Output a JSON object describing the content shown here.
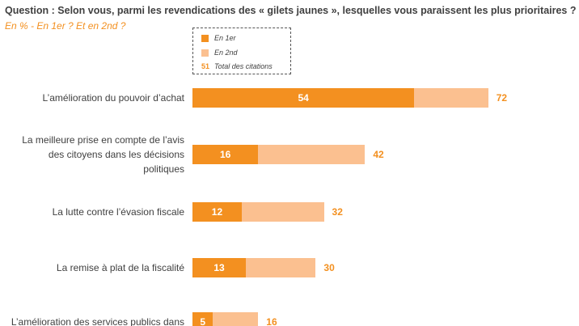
{
  "chart_data": {
    "type": "stacked-bar-horizontal",
    "title": "Question : Selon vous, parmi les revendications des « gilets jaunes », lesquelles vous paraissent les plus prioritaires ?",
    "subtitle": "En % - En 1er ? Et en 2nd ?",
    "categories": [
      "L’amélioration du pouvoir d’achat",
      "La meilleure prise en compte de l’avis des citoyens dans les décisions politiques",
      "La lutte contre l’évasion fiscale",
      "La remise à plat de la fiscalité",
      "L’amélioration des services publics dans"
    ],
    "series": [
      {
        "name": "En 1er",
        "color": "#f39020",
        "values": [
          54,
          16,
          12,
          13,
          5
        ]
      },
      {
        "name": "En 2nd",
        "color": "#fbc090",
        "values": [
          18,
          26,
          20,
          17,
          11
        ]
      }
    ],
    "totals": {
      "name": "Total des citations",
      "legend_sample": "51",
      "color": "#f39020",
      "values": [
        72,
        42,
        32,
        30,
        16
      ]
    }
  }
}
